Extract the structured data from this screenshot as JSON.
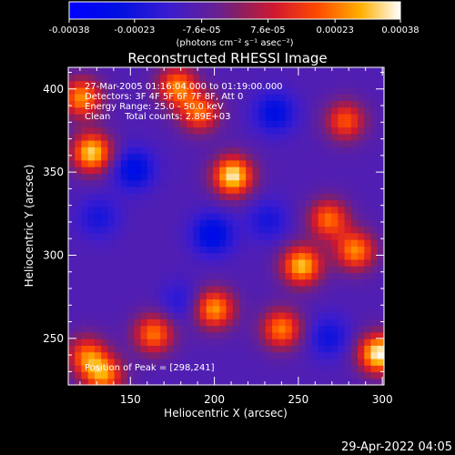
{
  "chart_data": {
    "type": "heatmap",
    "title": "Reconstructed RHESSI Image",
    "xlabel": "Heliocentric X (arcsec)",
    "ylabel": "Heliocentric Y (arcsec)",
    "xlim": [
      113,
      301
    ],
    "ylim": [
      222,
      413
    ],
    "x_ticks": [
      "150",
      "200",
      "250",
      "300"
    ],
    "y_ticks": [
      "250",
      "300",
      "350",
      "400"
    ],
    "colorbar": {
      "range": [
        -0.00038,
        0.00038
      ],
      "tick_labels": [
        "-0.00038",
        "-0.00023",
        "-7.6e-05",
        "7.6e-05",
        "0.00023",
        "0.00038"
      ],
      "label": "(photons cm⁻² s⁻¹ asec⁻²)"
    },
    "info_lines": [
      "27-Mar-2005 01:16:04.000 to 01:19:00.000",
      "Detectors: 3F 4F 5F 6F 7F 8F, Att 0",
      "Energy Range: 25.0 - 50.0 keV",
      "Clean     Total counts: 2.89E+03"
    ],
    "peak_label": "Position of Peak = [298,241]",
    "peak": [
      298,
      241
    ],
    "bright_regions": [
      {
        "x": 211,
        "y": 348,
        "value": 0.00036
      },
      {
        "x": 127,
        "y": 362,
        "value": 0.00033
      },
      {
        "x": 121,
        "y": 395,
        "value": 0.00026
      },
      {
        "x": 178,
        "y": 402,
        "value": 0.00024
      },
      {
        "x": 191,
        "y": 386,
        "value": 0.00021
      },
      {
        "x": 278,
        "y": 381,
        "value": 0.00019
      },
      {
        "x": 252,
        "y": 294,
        "value": 0.00031
      },
      {
        "x": 284,
        "y": 303,
        "value": 0.00025
      },
      {
        "x": 268,
        "y": 322,
        "value": 0.00022
      },
      {
        "x": 200,
        "y": 268,
        "value": 0.00027
      },
      {
        "x": 164,
        "y": 253,
        "value": 0.00023
      },
      {
        "x": 240,
        "y": 256,
        "value": 0.00024
      },
      {
        "x": 298,
        "y": 241,
        "value": 0.00038
      },
      {
        "x": 134,
        "y": 228,
        "value": 0.00024
      },
      {
        "x": 124,
        "y": 240,
        "value": 0.0002
      }
    ],
    "dark_regions": [
      {
        "x": 152,
        "y": 352,
        "value": -0.0003
      },
      {
        "x": 131,
        "y": 323,
        "value": -0.00022
      },
      {
        "x": 236,
        "y": 386,
        "value": -0.00028
      },
      {
        "x": 199,
        "y": 313,
        "value": -0.00031
      },
      {
        "x": 232,
        "y": 321,
        "value": -0.00022
      },
      {
        "x": 268,
        "y": 251,
        "value": -0.00024
      },
      {
        "x": 180,
        "y": 272,
        "value": -0.0002
      }
    ],
    "background_value": -0.0001
  },
  "timestamp": "29-Apr-2022 04:05"
}
